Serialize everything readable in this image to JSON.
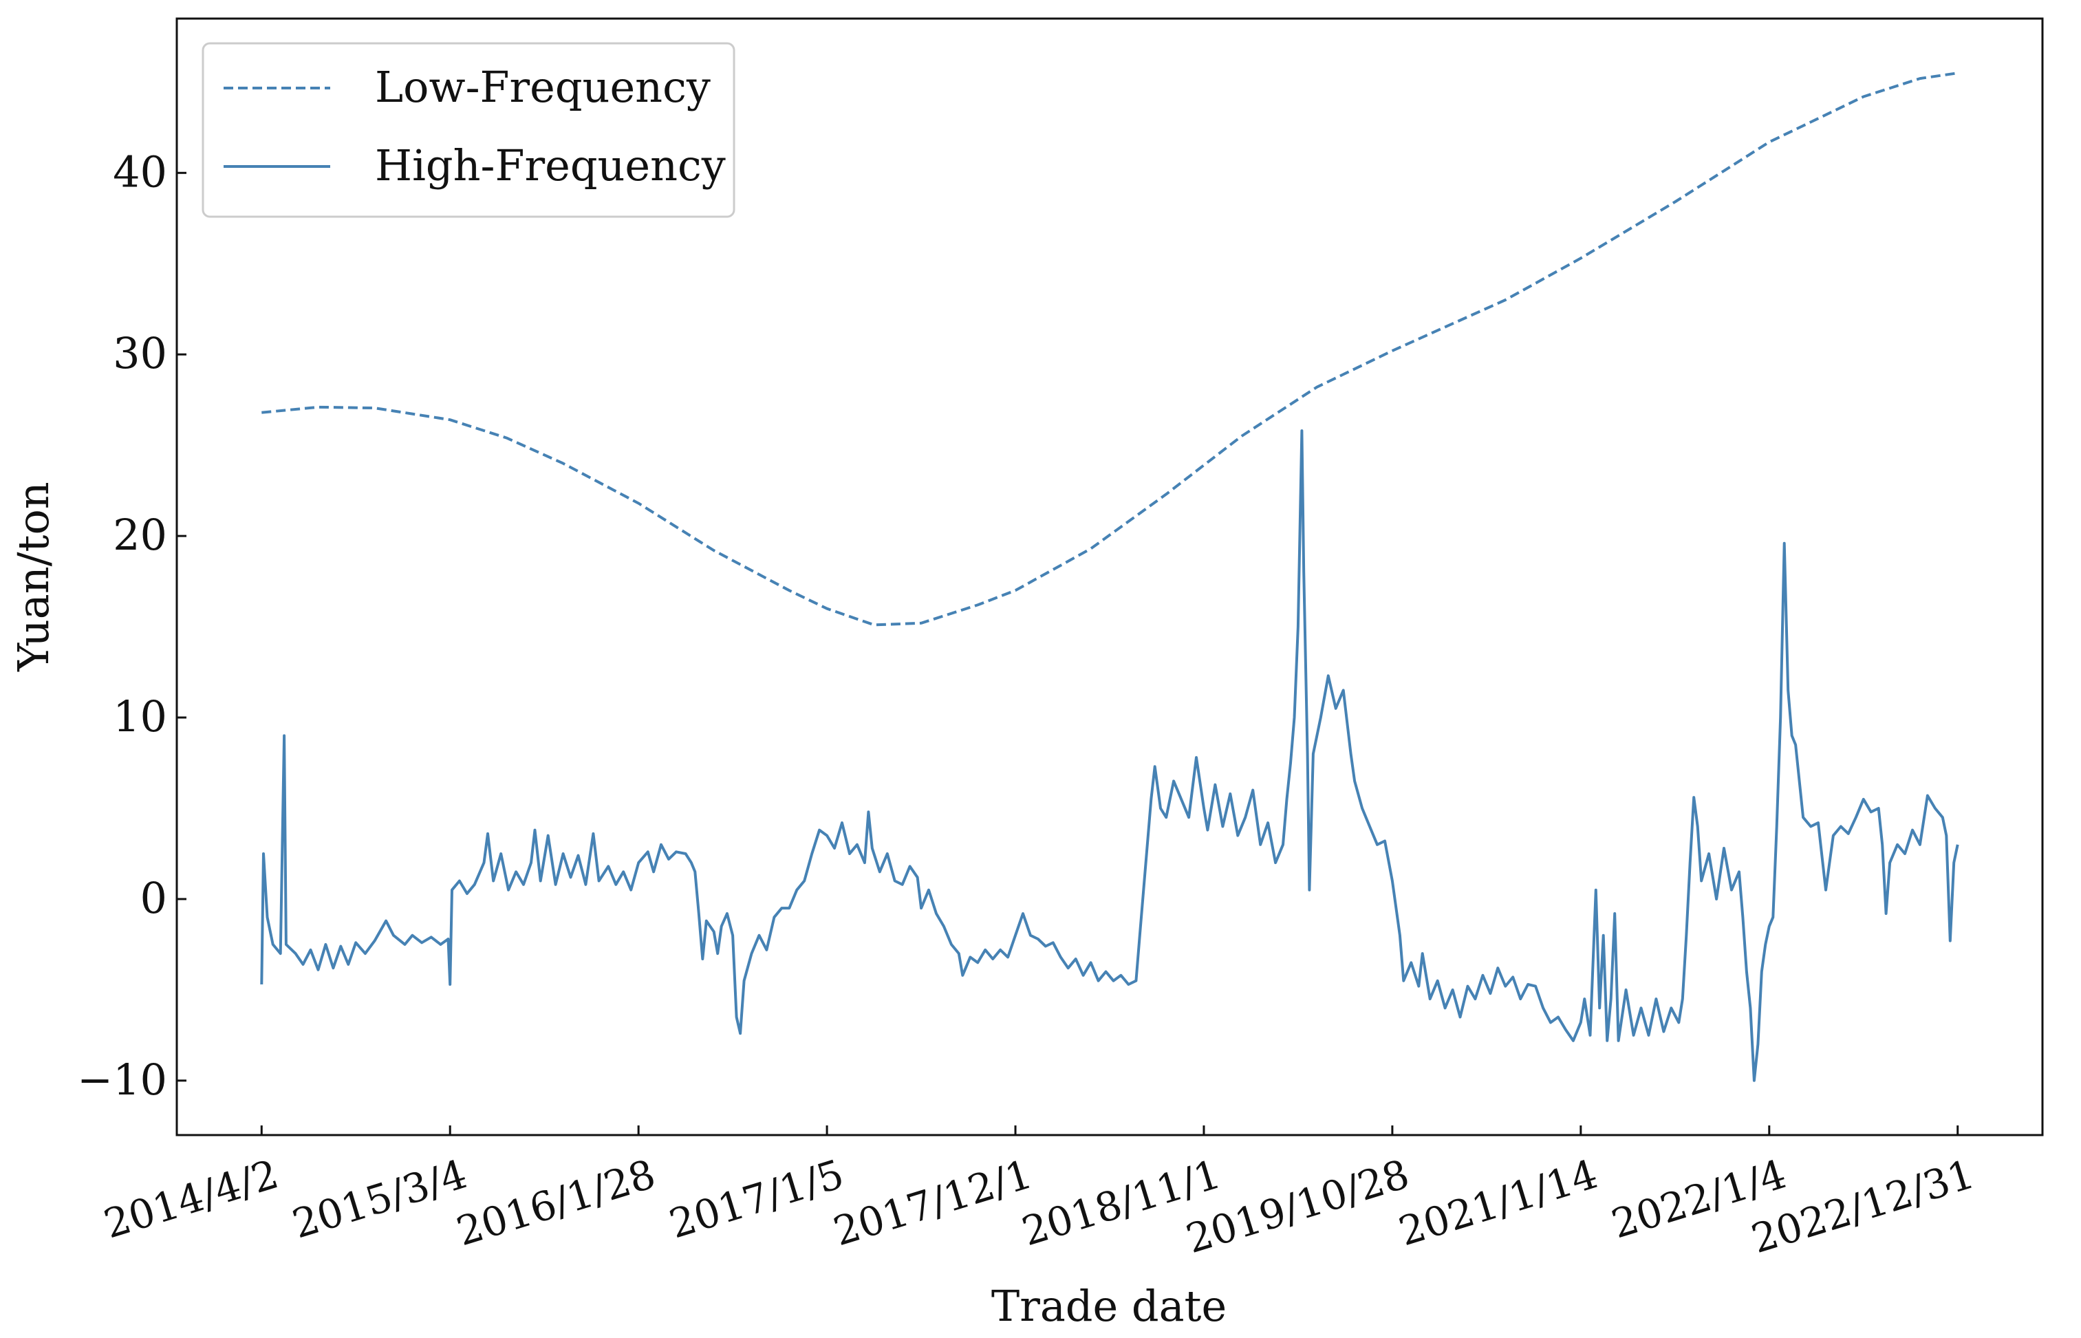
{
  "chart_data": {
    "type": "line",
    "title": "",
    "xlabel": "Trade date",
    "ylabel": "Yuan/ton",
    "ylim": [
      -13,
      48.5
    ],
    "yticks": [
      -10,
      0,
      10,
      20,
      30,
      40
    ],
    "ytick_labels": [
      "−10",
      "0",
      "10",
      "20",
      "30",
      "40"
    ],
    "x_index_range": [
      -0.45,
      9.45
    ],
    "xtick_labels": [
      "2014/4/2",
      "2015/3/4",
      "2016/1/28",
      "2017/1/5",
      "2017/12/1",
      "2018/11/1",
      "2019/10/28",
      "2021/1/14",
      "2022/1/4",
      "2022/12/31"
    ],
    "legend": {
      "position": "top-left",
      "entries": [
        "Low-Frequency",
        "High-Frequency"
      ]
    },
    "color": "#4682b4",
    "series": [
      {
        "name": "Low-Frequency",
        "style": "dashed",
        "points": [
          [
            0.0,
            26.8
          ],
          [
            0.3,
            27.1
          ],
          [
            0.6,
            27.05
          ],
          [
            1.0,
            26.4
          ],
          [
            1.3,
            25.4
          ],
          [
            1.6,
            24.0
          ],
          [
            2.0,
            21.8
          ],
          [
            2.4,
            19.2
          ],
          [
            2.8,
            17.0
          ],
          [
            3.0,
            16.0
          ],
          [
            3.25,
            15.1
          ],
          [
            3.5,
            15.2
          ],
          [
            3.8,
            16.2
          ],
          [
            4.0,
            17.0
          ],
          [
            4.4,
            19.3
          ],
          [
            4.8,
            22.3
          ],
          [
            5.2,
            25.5
          ],
          [
            5.6,
            28.2
          ],
          [
            6.0,
            30.2
          ],
          [
            6.6,
            33.0
          ],
          [
            7.0,
            35.3
          ],
          [
            7.5,
            38.4
          ],
          [
            8.0,
            41.7
          ],
          [
            8.5,
            44.2
          ],
          [
            8.8,
            45.2
          ],
          [
            9.0,
            45.5
          ]
        ]
      },
      {
        "name": "High-Frequency",
        "style": "solid",
        "points": [
          [
            0.0,
            -4.7
          ],
          [
            0.01,
            2.5
          ],
          [
            0.03,
            -1.0
          ],
          [
            0.06,
            -2.5
          ],
          [
            0.1,
            -3.0
          ],
          [
            0.12,
            9.0
          ],
          [
            0.13,
            -2.5
          ],
          [
            0.18,
            -3.0
          ],
          [
            0.22,
            -3.6
          ],
          [
            0.26,
            -2.8
          ],
          [
            0.3,
            -3.9
          ],
          [
            0.34,
            -2.5
          ],
          [
            0.38,
            -3.8
          ],
          [
            0.42,
            -2.6
          ],
          [
            0.46,
            -3.6
          ],
          [
            0.5,
            -2.4
          ],
          [
            0.55,
            -3.0
          ],
          [
            0.6,
            -2.3
          ],
          [
            0.66,
            -1.2
          ],
          [
            0.7,
            -2.0
          ],
          [
            0.76,
            -2.5
          ],
          [
            0.8,
            -2.0
          ],
          [
            0.85,
            -2.4
          ],
          [
            0.9,
            -2.1
          ],
          [
            0.95,
            -2.5
          ],
          [
            0.99,
            -2.2
          ],
          [
            1.0,
            -4.7
          ],
          [
            1.01,
            0.5
          ],
          [
            1.05,
            1.0
          ],
          [
            1.09,
            0.3
          ],
          [
            1.13,
            0.8
          ],
          [
            1.18,
            2.0
          ],
          [
            1.2,
            3.6
          ],
          [
            1.23,
            1.0
          ],
          [
            1.27,
            2.5
          ],
          [
            1.31,
            0.5
          ],
          [
            1.35,
            1.5
          ],
          [
            1.39,
            0.8
          ],
          [
            1.43,
            2.0
          ],
          [
            1.45,
            3.8
          ],
          [
            1.48,
            1.0
          ],
          [
            1.52,
            3.5
          ],
          [
            1.56,
            0.8
          ],
          [
            1.6,
            2.5
          ],
          [
            1.64,
            1.2
          ],
          [
            1.68,
            2.4
          ],
          [
            1.72,
            0.8
          ],
          [
            1.76,
            3.6
          ],
          [
            1.79,
            1.0
          ],
          [
            1.84,
            1.8
          ],
          [
            1.88,
            0.8
          ],
          [
            1.92,
            1.5
          ],
          [
            1.96,
            0.5
          ],
          [
            2.0,
            2.0
          ],
          [
            2.05,
            2.6
          ],
          [
            2.08,
            1.5
          ],
          [
            2.12,
            3.0
          ],
          [
            2.16,
            2.2
          ],
          [
            2.2,
            2.6
          ],
          [
            2.25,
            2.5
          ],
          [
            2.28,
            2.0
          ],
          [
            2.3,
            1.5
          ],
          [
            2.32,
            -0.8
          ],
          [
            2.34,
            -3.3
          ],
          [
            2.36,
            -1.2
          ],
          [
            2.4,
            -1.8
          ],
          [
            2.42,
            -3.0
          ],
          [
            2.44,
            -1.5
          ],
          [
            2.47,
            -0.8
          ],
          [
            2.5,
            -2.0
          ],
          [
            2.52,
            -6.5
          ],
          [
            2.54,
            -7.4
          ],
          [
            2.56,
            -4.5
          ],
          [
            2.6,
            -3.0
          ],
          [
            2.64,
            -2.0
          ],
          [
            2.68,
            -2.8
          ],
          [
            2.72,
            -1.0
          ],
          [
            2.76,
            -0.5
          ],
          [
            2.8,
            -0.5
          ],
          [
            2.84,
            0.5
          ],
          [
            2.88,
            1.0
          ],
          [
            2.92,
            2.5
          ],
          [
            2.96,
            3.8
          ],
          [
            3.0,
            3.5
          ],
          [
            3.04,
            2.8
          ],
          [
            3.08,
            4.2
          ],
          [
            3.12,
            2.5
          ],
          [
            3.16,
            3.0
          ],
          [
            3.2,
            2.0
          ],
          [
            3.22,
            4.8
          ],
          [
            3.24,
            2.8
          ],
          [
            3.28,
            1.5
          ],
          [
            3.32,
            2.5
          ],
          [
            3.36,
            1.0
          ],
          [
            3.4,
            0.8
          ],
          [
            3.44,
            1.8
          ],
          [
            3.48,
            1.2
          ],
          [
            3.5,
            -0.5
          ],
          [
            3.54,
            0.5
          ],
          [
            3.58,
            -0.8
          ],
          [
            3.62,
            -1.5
          ],
          [
            3.66,
            -2.5
          ],
          [
            3.7,
            -3.0
          ],
          [
            3.72,
            -4.2
          ],
          [
            3.76,
            -3.2
          ],
          [
            3.8,
            -3.5
          ],
          [
            3.84,
            -2.8
          ],
          [
            3.88,
            -3.3
          ],
          [
            3.92,
            -2.8
          ],
          [
            3.96,
            -3.2
          ],
          [
            4.0,
            -2.0
          ],
          [
            4.04,
            -0.8
          ],
          [
            4.08,
            -2.0
          ],
          [
            4.12,
            -2.2
          ],
          [
            4.16,
            -2.6
          ],
          [
            4.2,
            -2.4
          ],
          [
            4.24,
            -3.2
          ],
          [
            4.28,
            -3.8
          ],
          [
            4.32,
            -3.3
          ],
          [
            4.36,
            -4.2
          ],
          [
            4.4,
            -3.5
          ],
          [
            4.44,
            -4.5
          ],
          [
            4.48,
            -4.0
          ],
          [
            4.52,
            -4.5
          ],
          [
            4.56,
            -4.2
          ],
          [
            4.6,
            -4.7
          ],
          [
            4.64,
            -4.5
          ],
          [
            4.66,
            -2.0
          ],
          [
            4.68,
            0.5
          ],
          [
            4.7,
            3.0
          ],
          [
            4.72,
            5.5
          ],
          [
            4.74,
            7.3
          ],
          [
            4.77,
            5.0
          ],
          [
            4.8,
            4.5
          ],
          [
            4.84,
            6.5
          ],
          [
            4.88,
            5.5
          ],
          [
            4.92,
            4.5
          ],
          [
            4.96,
            7.8
          ],
          [
            5.0,
            5.0
          ],
          [
            5.02,
            3.8
          ],
          [
            5.06,
            6.3
          ],
          [
            5.1,
            4.0
          ],
          [
            5.14,
            5.8
          ],
          [
            5.18,
            3.5
          ],
          [
            5.22,
            4.5
          ],
          [
            5.26,
            6.0
          ],
          [
            5.3,
            3.0
          ],
          [
            5.34,
            4.2
          ],
          [
            5.38,
            2.0
          ],
          [
            5.42,
            3.0
          ],
          [
            5.44,
            5.5
          ],
          [
            5.46,
            7.5
          ],
          [
            5.48,
            10.0
          ],
          [
            5.5,
            15.0
          ],
          [
            5.52,
            25.8
          ],
          [
            5.53,
            18.0
          ],
          [
            5.55,
            8.0
          ],
          [
            5.56,
            0.5
          ],
          [
            5.58,
            8.0
          ],
          [
            5.62,
            10.0
          ],
          [
            5.66,
            12.3
          ],
          [
            5.7,
            10.5
          ],
          [
            5.74,
            11.5
          ],
          [
            5.78,
            8.0
          ],
          [
            5.8,
            6.5
          ],
          [
            5.84,
            5.0
          ],
          [
            5.88,
            4.0
          ],
          [
            5.92,
            3.0
          ],
          [
            5.96,
            3.2
          ],
          [
            6.0,
            1.0
          ],
          [
            6.02,
            -0.5
          ],
          [
            6.04,
            -2.0
          ],
          [
            6.06,
            -4.5
          ],
          [
            6.1,
            -3.5
          ],
          [
            6.14,
            -4.8
          ],
          [
            6.16,
            -3.0
          ],
          [
            6.2,
            -5.5
          ],
          [
            6.24,
            -4.5
          ],
          [
            6.28,
            -6.0
          ],
          [
            6.32,
            -5.0
          ],
          [
            6.36,
            -6.5
          ],
          [
            6.4,
            -4.8
          ],
          [
            6.44,
            -5.5
          ],
          [
            6.48,
            -4.2
          ],
          [
            6.52,
            -5.2
          ],
          [
            6.56,
            -3.8
          ],
          [
            6.6,
            -4.8
          ],
          [
            6.64,
            -4.3
          ],
          [
            6.68,
            -5.5
          ],
          [
            6.72,
            -4.7
          ],
          [
            6.76,
            -4.8
          ],
          [
            6.8,
            -6.0
          ],
          [
            6.84,
            -6.8
          ],
          [
            6.88,
            -6.5
          ],
          [
            6.92,
            -7.2
          ],
          [
            6.96,
            -7.8
          ],
          [
            7.0,
            -6.8
          ],
          [
            7.02,
            -5.5
          ],
          [
            7.05,
            -7.5
          ],
          [
            7.08,
            0.5
          ],
          [
            7.1,
            -6.0
          ],
          [
            7.12,
            -2.0
          ],
          [
            7.14,
            -7.8
          ],
          [
            7.16,
            -5.5
          ],
          [
            7.18,
            -0.8
          ],
          [
            7.2,
            -7.8
          ],
          [
            7.24,
            -5.0
          ],
          [
            7.28,
            -7.5
          ],
          [
            7.32,
            -6.0
          ],
          [
            7.36,
            -7.5
          ],
          [
            7.4,
            -5.5
          ],
          [
            7.44,
            -7.3
          ],
          [
            7.48,
            -6.0
          ],
          [
            7.52,
            -6.8
          ],
          [
            7.54,
            -5.5
          ],
          [
            7.56,
            -2.0
          ],
          [
            7.58,
            2.0
          ],
          [
            7.6,
            5.6
          ],
          [
            7.62,
            4.0
          ],
          [
            7.64,
            1.0
          ],
          [
            7.68,
            2.5
          ],
          [
            7.72,
            0.0
          ],
          [
            7.76,
            2.8
          ],
          [
            7.8,
            0.5
          ],
          [
            7.84,
            1.5
          ],
          [
            7.86,
            -1.0
          ],
          [
            7.88,
            -4.0
          ],
          [
            7.9,
            -6.0
          ],
          [
            7.92,
            -10.0
          ],
          [
            7.94,
            -8.0
          ],
          [
            7.96,
            -4.0
          ],
          [
            7.98,
            -2.5
          ],
          [
            8.0,
            -1.5
          ],
          [
            8.02,
            -1.0
          ],
          [
            8.04,
            4.0
          ],
          [
            8.06,
            10.0
          ],
          [
            8.08,
            19.6
          ],
          [
            8.1,
            11.5
          ],
          [
            8.12,
            9.0
          ],
          [
            8.14,
            8.5
          ],
          [
            8.16,
            6.5
          ],
          [
            8.18,
            4.5
          ],
          [
            8.22,
            4.0
          ],
          [
            8.26,
            4.2
          ],
          [
            8.3,
            0.5
          ],
          [
            8.34,
            3.5
          ],
          [
            8.38,
            4.0
          ],
          [
            8.42,
            3.6
          ],
          [
            8.46,
            4.5
          ],
          [
            8.5,
            5.5
          ],
          [
            8.54,
            4.8
          ],
          [
            8.58,
            5.0
          ],
          [
            8.6,
            3.0
          ],
          [
            8.62,
            -0.8
          ],
          [
            8.64,
            2.0
          ],
          [
            8.68,
            3.0
          ],
          [
            8.72,
            2.5
          ],
          [
            8.76,
            3.8
          ],
          [
            8.8,
            3.0
          ],
          [
            8.84,
            5.7
          ],
          [
            8.88,
            5.0
          ],
          [
            8.92,
            4.5
          ],
          [
            8.94,
            3.5
          ],
          [
            8.96,
            -2.3
          ],
          [
            8.98,
            2.0
          ],
          [
            9.0,
            3.0
          ]
        ]
      }
    ]
  }
}
